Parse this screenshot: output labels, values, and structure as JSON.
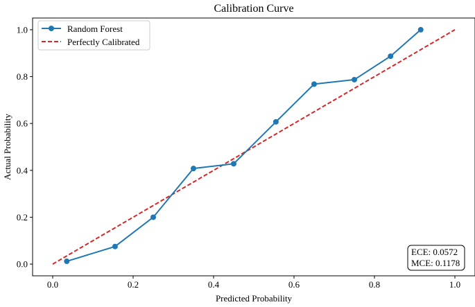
{
  "chart_data": {
    "type": "line",
    "title": "Calibration Curve",
    "xlabel": "Predicted Probability",
    "ylabel": "Actual Probability",
    "xlim": [
      -0.05,
      1.05
    ],
    "ylim": [
      -0.05,
      1.05
    ],
    "xticks": [
      0.0,
      0.2,
      0.4,
      0.6,
      0.8,
      1.0
    ],
    "xtick_labels": [
      "0.0",
      "0.2",
      "0.4",
      "0.6",
      "0.8",
      "1.0"
    ],
    "yticks": [
      0.0,
      0.2,
      0.4,
      0.6,
      0.8,
      1.0
    ],
    "ytick_labels": [
      "0.0",
      "0.2",
      "0.4",
      "0.6",
      "0.8",
      "1.0"
    ],
    "grid": false,
    "legend_position": "top-left",
    "series": [
      {
        "name": "Random Forest",
        "color": "#1f77b4",
        "style": "solid",
        "marker": "circle",
        "x": [
          0.035,
          0.155,
          0.25,
          0.35,
          0.45,
          0.555,
          0.65,
          0.75,
          0.84,
          0.915
        ],
        "y": [
          0.012,
          0.075,
          0.2,
          0.408,
          0.428,
          0.607,
          0.768,
          0.787,
          0.887,
          1.0
        ]
      },
      {
        "name": "Perfectly Calibrated",
        "color": "#d62728",
        "style": "dashed",
        "marker": "none",
        "x": [
          0.0,
          1.0
        ],
        "y": [
          0.0,
          1.0
        ]
      }
    ],
    "annotation": {
      "lines": [
        "ECE: 0.0572",
        "MCE: 0.1178"
      ],
      "position": "bottom-right"
    }
  }
}
